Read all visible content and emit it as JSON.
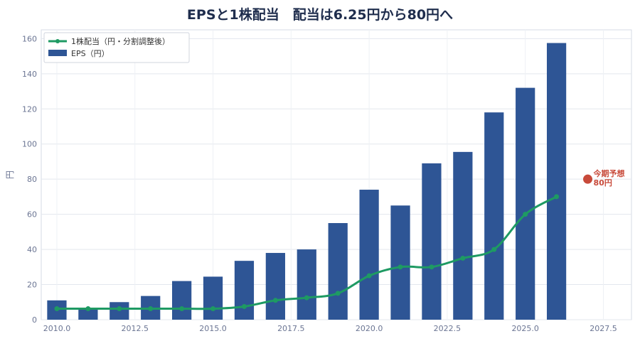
{
  "chart_data": {
    "type": "bar",
    "title": "EPSと1株配当　配当は6.25円から80円へ",
    "ylabel": "円",
    "xlabel": "",
    "xlim": [
      2009.5,
      2028.4
    ],
    "ylim": [
      0,
      165
    ],
    "x_ticks": [
      2010.0,
      2012.5,
      2015.0,
      2017.5,
      2020.0,
      2022.5,
      2025.0,
      2027.5
    ],
    "x_tick_labels": [
      "2010.0",
      "2012.5",
      "2015.0",
      "2017.5",
      "2020.0",
      "2022.5",
      "2025.0",
      "2027.5"
    ],
    "y_ticks": [
      0,
      20,
      40,
      60,
      80,
      100,
      120,
      140,
      160
    ],
    "y_tick_labels": [
      "0",
      "20",
      "40",
      "60",
      "80",
      "100",
      "120",
      "140",
      "160"
    ],
    "grid": true,
    "legend_position": "top-left",
    "colors": {
      "eps": "#2e5595",
      "dividend": "#1e9a63",
      "forecast": "#c84a3a"
    },
    "series": [
      {
        "name": "EPS（円）",
        "type": "bar",
        "x": [
          2010,
          2011,
          2012,
          2013,
          2014,
          2015,
          2016,
          2017,
          2018,
          2019,
          2020,
          2021,
          2022,
          2023,
          2024,
          2025,
          2026
        ],
        "values": [
          11,
          6,
          10,
          13.5,
          22,
          24.5,
          33.5,
          38,
          40,
          55,
          74,
          65,
          89,
          95.5,
          118,
          132,
          157.5
        ]
      },
      {
        "name": "1株配当（円・分割調整後）",
        "type": "line",
        "x": [
          2010,
          2011,
          2012,
          2013,
          2014,
          2015,
          2016,
          2017,
          2018,
          2019,
          2020,
          2021,
          2022,
          2023,
          2024,
          2025,
          2026
        ],
        "values": [
          6.25,
          6.25,
          6.25,
          6.25,
          6.25,
          6.25,
          7.5,
          11,
          12.5,
          15,
          25,
          30,
          30,
          35,
          40,
          60,
          70
        ]
      }
    ],
    "annotation": {
      "x": 2027.0,
      "y": 80,
      "label_line1": "今期予想",
      "label_line2": "80円"
    }
  }
}
